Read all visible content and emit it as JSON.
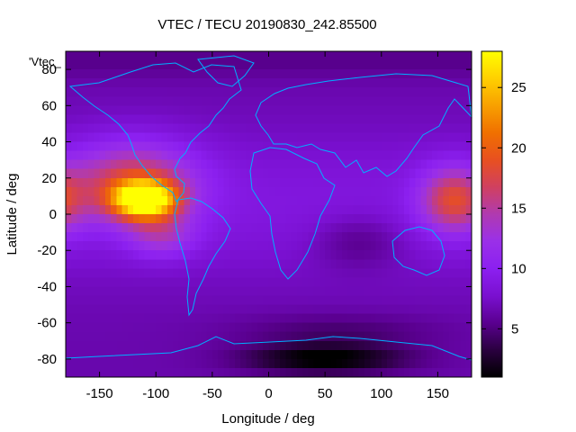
{
  "chart_data": {
    "type": "heatmap",
    "title": "VTEC / TECU 20190830_242.85500",
    "xlabel": "Longitude / deg",
    "ylabel": "Latitude / deg",
    "key_label": "'Vtec_",
    "xlim": [
      -180,
      180
    ],
    "ylim": [
      -90,
      90
    ],
    "x_ticks": [
      -150,
      -100,
      -50,
      0,
      50,
      100,
      150
    ],
    "y_ticks": [
      -80,
      -60,
      -40,
      -20,
      0,
      20,
      40,
      60,
      80
    ],
    "colorbar": {
      "range": [
        1,
        28
      ],
      "ticks": [
        5,
        10,
        15,
        20,
        25
      ],
      "palette": [
        "#000000",
        "#2a003f",
        "#5a0090",
        "#7a10d0",
        "#8c20f0",
        "#9a30e8",
        "#b03ab0",
        "#d04060",
        "#e85020",
        "#f07000",
        "#f8a000",
        "#ffd000",
        "#ffff00"
      ]
    },
    "grid": false,
    "features": [
      {
        "name": "equatorial anomaly west",
        "lon": -110,
        "lat": 8,
        "peak_vtec": 27
      },
      {
        "name": "equatorial anomaly east",
        "lon": 165,
        "lat": 10,
        "peak_vtec": 18
      },
      {
        "name": "antarctic minimum",
        "lon": 50,
        "lat": -78,
        "peak_vtec": 1
      }
    ]
  }
}
